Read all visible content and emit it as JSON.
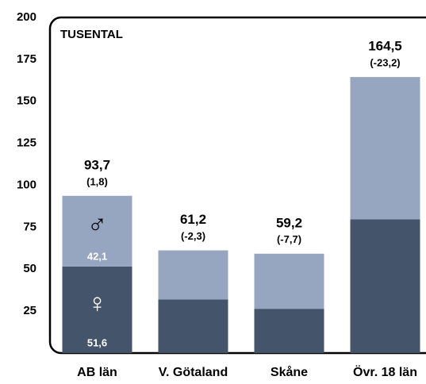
{
  "chart_data": {
    "type": "stacked_bar",
    "annotation": "TUSENTAL",
    "categories": [
      "AB län",
      "V. Götaland",
      "Skåne",
      "Övr. 18 län"
    ],
    "series": [
      {
        "name": "♀",
        "color": "#44546a",
        "values": [
          51.6,
          32,
          26.4,
          79.7
        ],
        "value_labels": [
          "51,6",
          null,
          null,
          null
        ]
      },
      {
        "name": "♂",
        "color": "#97a6c0",
        "values": [
          42.1,
          29.2,
          32.8,
          84.8
        ],
        "value_labels": [
          "42,1",
          null,
          null,
          null
        ]
      }
    ],
    "totals": [
      93.7,
      61.2,
      59.2,
      164.5
    ],
    "total_labels": [
      "93,7",
      "61,2",
      "59,2",
      "164,5"
    ],
    "changes": [
      1.8,
      -2.3,
      -7.7,
      -23.2
    ],
    "change_labels": [
      "(1,8)",
      "(-2,3)",
      "(-7,7)",
      "(-23,2)"
    ],
    "ylim": [
      0,
      200
    ],
    "yticks": [
      25,
      50,
      75,
      100,
      125,
      150,
      175,
      200
    ],
    "grid": false
  }
}
